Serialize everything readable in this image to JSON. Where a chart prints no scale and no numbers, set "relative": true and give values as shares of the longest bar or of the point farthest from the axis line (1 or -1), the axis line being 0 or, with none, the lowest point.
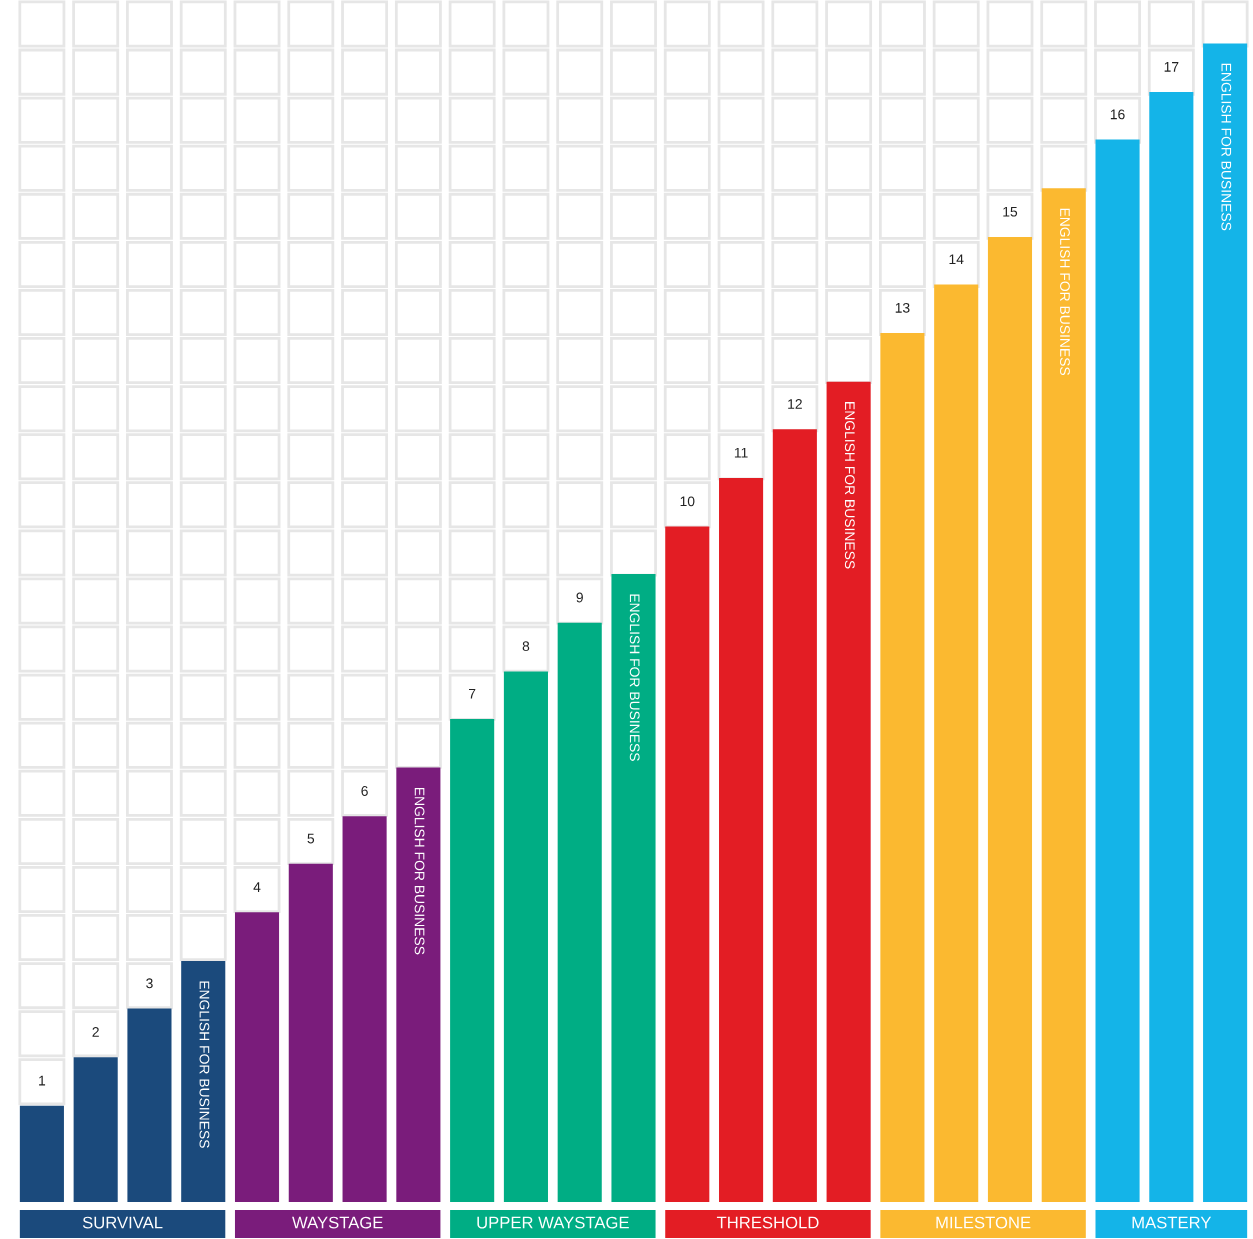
{
  "chart_data": {
    "type": "bar",
    "relative": true,
    "categories": [
      null,
      null,
      null,
      null,
      null,
      null,
      null,
      null,
      null,
      null,
      null,
      null,
      null,
      null,
      null,
      null,
      null,
      null,
      null,
      null,
      null,
      null,
      null
    ],
    "series": [
      {
        "colors": [
          "#1b4a7c",
          "#1b4a7c",
          "#1b4a7c",
          "#1b4a7c",
          "#7a1c7b",
          "#7a1c7b",
          "#7a1c7b",
          "#7a1c7b",
          "#00ad84",
          "#00ad84",
          "#00ad84",
          "#00ad84",
          "#e31d24",
          "#e31d24",
          "#e31d24",
          "#e31d24",
          "#fbb930",
          "#fbb930",
          "#fbb930",
          "#fbb930",
          "#14b4e8",
          "#14b4e8",
          "#14b4e8"
        ],
        "values": [
          0.083,
          0.125,
          0.167,
          0.208,
          0.25,
          0.292,
          0.333,
          0.375,
          0.417,
          0.458,
          0.5,
          0.542,
          0.583,
          0.625,
          0.667,
          0.708,
          0.75,
          0.792,
          0.833,
          0.875,
          0.917,
          0.958,
          1
        ]
      }
    ],
    "annotations": [
      "1",
      "2",
      "3",
      "ENGLISH FOR BUSINESS",
      "4",
      "5",
      "6",
      "ENGLISH FOR BUSINESS",
      "7",
      "8",
      "9",
      "ENGLISH FOR BUSINESS",
      "10",
      "11",
      "12",
      "ENGLISH FOR BUSINESS",
      "13",
      "14",
      "15",
      "ENGLISH FOR BUSINESS",
      "16",
      "17",
      "ENGLISH FOR BUSINESS",
      "SURVIVAL",
      "WAYSTAGE",
      "UPPER WAYSTAGE",
      "THRESHOLD",
      "MILESTONE",
      "MASTERY"
    ],
    "legend": false
  }
}
